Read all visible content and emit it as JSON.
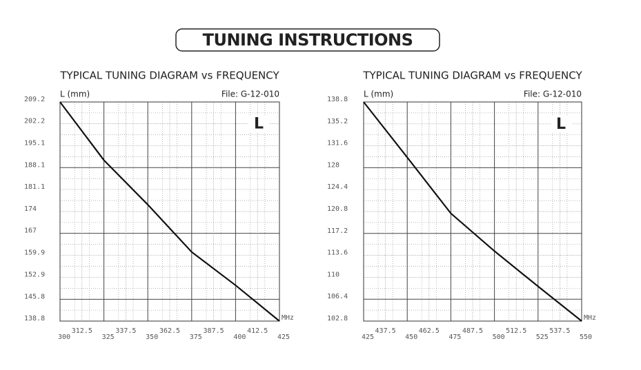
{
  "heading": "TUNING INSTRUCTIONS",
  "chart_data": [
    {
      "type": "line",
      "title": "TYPICAL TUNING DIAGRAM vs FREQUENCY",
      "y_label": "L (mm)",
      "file_label": "File:  G-12-010",
      "marker_label": "L",
      "x_unit": "MHz",
      "x": [
        300,
        325,
        350,
        375,
        400,
        425
      ],
      "values": [
        209.2,
        190.5,
        176.2,
        161,
        150.3,
        138.8
      ],
      "color": "#111111",
      "xlim": [
        300,
        425
      ],
      "xticks": [
        300,
        312.5,
        325,
        337.5,
        350,
        362.5,
        375,
        387.5,
        400,
        412.5,
        425
      ],
      "ylim": [
        138.8,
        209.2
      ],
      "yticks": [
        138.8,
        145.8,
        152.9,
        159.9,
        167,
        174,
        181.1,
        188.1,
        195.1,
        202.2,
        209.2
      ],
      "grid": true
    },
    {
      "type": "line",
      "title": "TYPICAL TUNING DIAGRAM vs FREQUENCY",
      "y_label": "L (mm)",
      "file_label": "File:  G-12-010",
      "marker_label": "L",
      "x_unit": "MHz",
      "x": [
        425,
        450,
        475,
        500,
        525,
        550
      ],
      "values": [
        138.8,
        129.7,
        120.5,
        114.3,
        108.5,
        102.8
      ],
      "color": "#111111",
      "xlim": [
        425,
        550
      ],
      "xticks": [
        425,
        437.5,
        450,
        462.5,
        475,
        487.5,
        500,
        512.5,
        525,
        537.5,
        550
      ],
      "ylim": [
        102.8,
        138.8
      ],
      "yticks": [
        102.8,
        106.4,
        110,
        113.6,
        117.2,
        120.8,
        124.4,
        128,
        131.6,
        135.2,
        138.8
      ],
      "grid": true
    }
  ]
}
